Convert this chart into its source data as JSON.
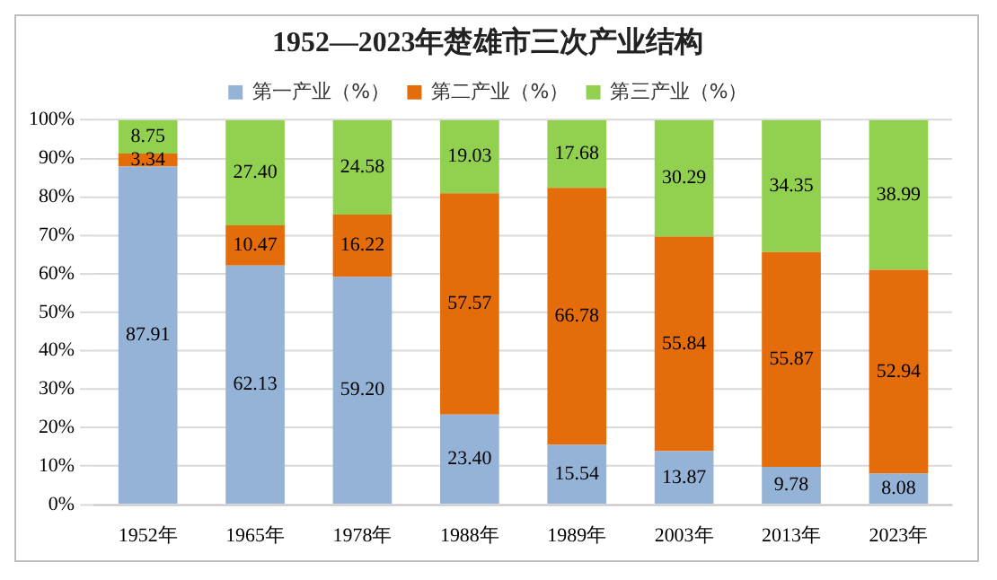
{
  "chart_data": {
    "type": "bar",
    "stacked": true,
    "title": "1952—2023年楚雄市三次产业结构",
    "categories": [
      "1952年",
      "1965年",
      "1978年",
      "1988年",
      "1989年",
      "2003年",
      "2013年",
      "2023年"
    ],
    "series": [
      {
        "name": "第一产业（%）",
        "color": "#95b3d7",
        "values": [
          87.91,
          62.13,
          59.2,
          23.4,
          15.54,
          13.87,
          9.78,
          8.08
        ],
        "value_labels": [
          "87.91",
          "62.13",
          "59.20",
          "23.40",
          "15.54",
          "13.87",
          "9.78",
          "8.08"
        ]
      },
      {
        "name": "第二产业（%）",
        "color": "#e46c0a",
        "values": [
          3.34,
          10.47,
          16.22,
          57.57,
          66.78,
          55.84,
          55.87,
          52.94
        ],
        "value_labels": [
          "3.34",
          "10.47",
          "16.22",
          "57.57",
          "66.78",
          "55.84",
          "55.87",
          "52.94"
        ]
      },
      {
        "name": "第三产业（%）",
        "color": "#92d050",
        "values": [
          8.75,
          27.4,
          24.58,
          19.03,
          17.68,
          30.29,
          34.35,
          38.99
        ],
        "value_labels": [
          "8.75",
          "27.40",
          "24.58",
          "19.03",
          "17.68",
          "30.29",
          "34.35",
          "38.99"
        ]
      }
    ],
    "ylim": [
      0,
      100
    ],
    "yticks": [
      {
        "value": 0,
        "label": "0%"
      },
      {
        "value": 10,
        "label": "10%"
      },
      {
        "value": 20,
        "label": "20%"
      },
      {
        "value": 30,
        "label": "30%"
      },
      {
        "value": 40,
        "label": "40%"
      },
      {
        "value": 50,
        "label": "50%"
      },
      {
        "value": 60,
        "label": "60%"
      },
      {
        "value": 70,
        "label": "70%"
      },
      {
        "value": 80,
        "label": "80%"
      },
      {
        "value": 90,
        "label": "90%"
      },
      {
        "value": 100,
        "label": "100%"
      }
    ],
    "grid": "y",
    "legend": "top"
  }
}
